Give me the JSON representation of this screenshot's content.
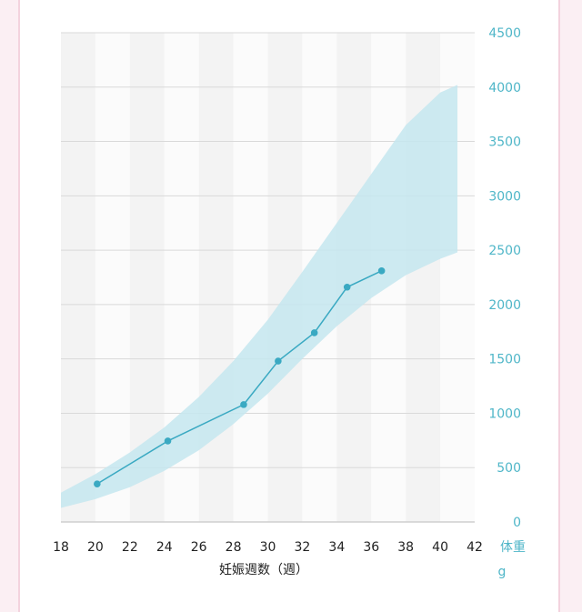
{
  "chart_data": {
    "type": "line",
    "xlabel": "妊娠週数（週）",
    "y_unit_line1": "体重",
    "y_unit_line2": "g",
    "xlim": [
      18,
      42
    ],
    "ylim": [
      0,
      4500
    ],
    "x_ticks": [
      18,
      20,
      22,
      24,
      26,
      28,
      30,
      32,
      34,
      36,
      38,
      40,
      42
    ],
    "y_ticks": [
      0,
      500,
      1000,
      1500,
      2000,
      2500,
      3000,
      3500,
      4000,
      4500
    ],
    "band": {
      "x": [
        18,
        20,
        22,
        24,
        26,
        28,
        30,
        32,
        34,
        36,
        38,
        40,
        41
      ],
      "upper": [
        270,
        440,
        640,
        870,
        1150,
        1480,
        1860,
        2300,
        2750,
        3200,
        3650,
        3950,
        4020
      ],
      "lower": [
        130,
        210,
        320,
        470,
        660,
        900,
        1180,
        1500,
        1800,
        2060,
        2270,
        2420,
        2480
      ]
    },
    "series": [
      {
        "x": [
          20.1,
          24.2,
          28.6,
          30.6,
          32.7,
          34.6,
          36.6
        ],
        "values": [
          350,
          745,
          1080,
          1480,
          1740,
          2160,
          2310
        ]
      }
    ],
    "grid": true,
    "colors": {
      "band": "#c4e6ee",
      "line": "#3aa9c2",
      "grid": "#d9d9d9",
      "stripe": "#f3f3f3",
      "y_ticks": "#4fb6c8"
    }
  }
}
